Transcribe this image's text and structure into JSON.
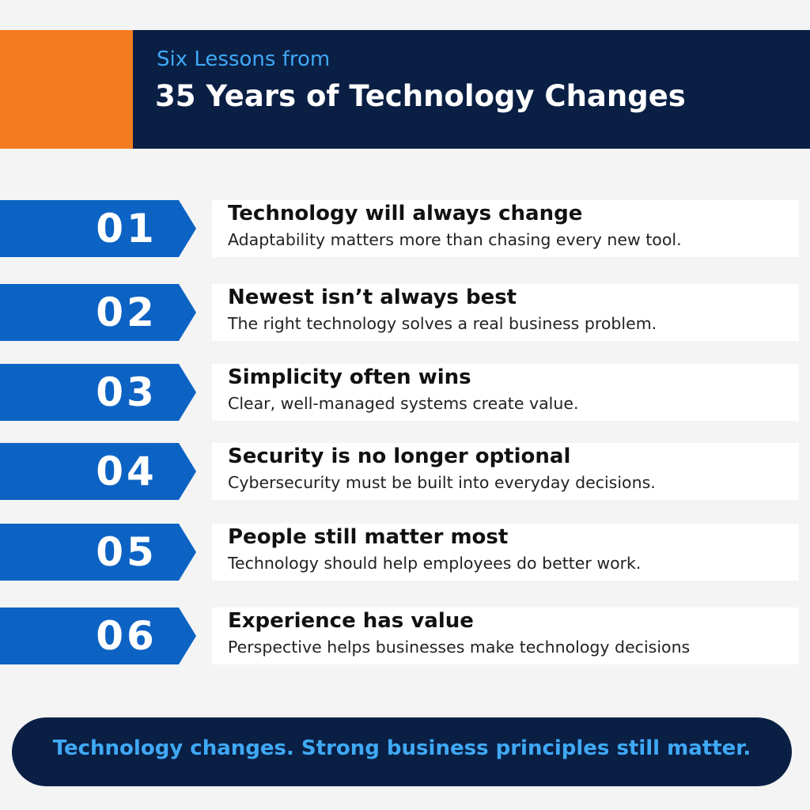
{
  "header": {
    "subtitle": "Six Lessons from",
    "title": "35 Years of Technology Changes"
  },
  "lessons": [
    {
      "number": "01",
      "title": "Technology will always change",
      "description": "Adaptability matters more than chasing every new tool."
    },
    {
      "number": "02",
      "title": "Newest isn’t always best",
      "description": "The right technology solves a real business problem."
    },
    {
      "number": "03",
      "title": "Simplicity often wins",
      "description": "Clear, well-managed systems create value."
    },
    {
      "number": "04",
      "title": "Security is no longer optional",
      "description": "Cybersecurity must be built into everyday decisions."
    },
    {
      "number": "05",
      "title": "People still matter most",
      "description": "Technology should help employees do better work."
    },
    {
      "number": "06",
      "title": "Experience has value",
      "description": "Perspective helps businesses make technology decisions"
    }
  ],
  "footer": {
    "text": "Technology changes. Strong business principles still matter."
  },
  "colors": {
    "accent_orange": "#f47b20",
    "navy": "#0a1f44",
    "blue": "#0c63c4",
    "light_blue": "#3fa9f5"
  }
}
